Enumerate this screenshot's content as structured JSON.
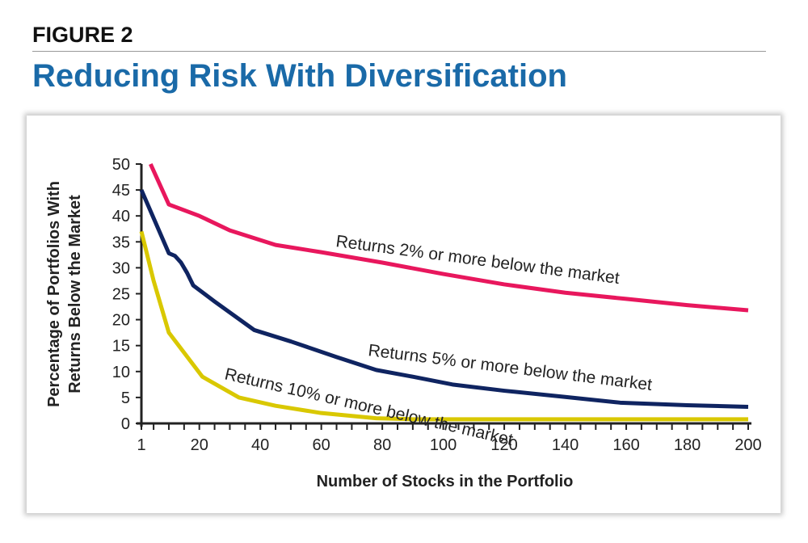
{
  "figure_label": "FIGURE 2",
  "chart_data": {
    "type": "line",
    "title": "Reducing Risk With Diversification",
    "xlabel": "Number of Stocks in the Portfolio",
    "ylabel": [
      "Percentage of Portfolios With",
      "Returns Below the Market"
    ],
    "xlim": [
      1,
      200
    ],
    "ylim": [
      0,
      50
    ],
    "xticks": [
      1,
      20,
      40,
      60,
      80,
      100,
      120,
      140,
      160,
      180,
      200
    ],
    "yticks": [
      0,
      5,
      10,
      15,
      20,
      25,
      30,
      35,
      40,
      45,
      50
    ],
    "grid": false,
    "series": [
      {
        "name": "Returns 2% or more below the market",
        "color": "#e8175d",
        "x": [
          4,
          10,
          20,
          30,
          45,
          60,
          80,
          100,
          120,
          140,
          160,
          180,
          200
        ],
        "y": [
          50,
          42.2,
          40,
          37.2,
          34.4,
          33,
          31,
          28.8,
          26.8,
          25.2,
          24,
          22.8,
          21.8
        ]
      },
      {
        "name": "Returns 5% or more below the market",
        "color": "#0f2461",
        "x": [
          1,
          10,
          12,
          14,
          16,
          18,
          25,
          38,
          50,
          65,
          78,
          90,
          103,
          120,
          140,
          158,
          180,
          200
        ],
        "y": [
          45,
          32.8,
          32.3,
          31,
          29,
          26.6,
          23.5,
          18,
          15.8,
          12.8,
          10.3,
          9,
          7.5,
          6.3,
          5.1,
          4,
          3.5,
          3.2
        ]
      },
      {
        "name": "Returns 10% or more below the market",
        "color": "#d9c800",
        "x": [
          1,
          5,
          10,
          21,
          33,
          45,
          60,
          78,
          90,
          100,
          200
        ],
        "y": [
          37,
          27.5,
          17.5,
          9,
          5,
          3.4,
          2,
          1,
          0.8,
          0.8,
          0.8
        ]
      }
    ]
  }
}
